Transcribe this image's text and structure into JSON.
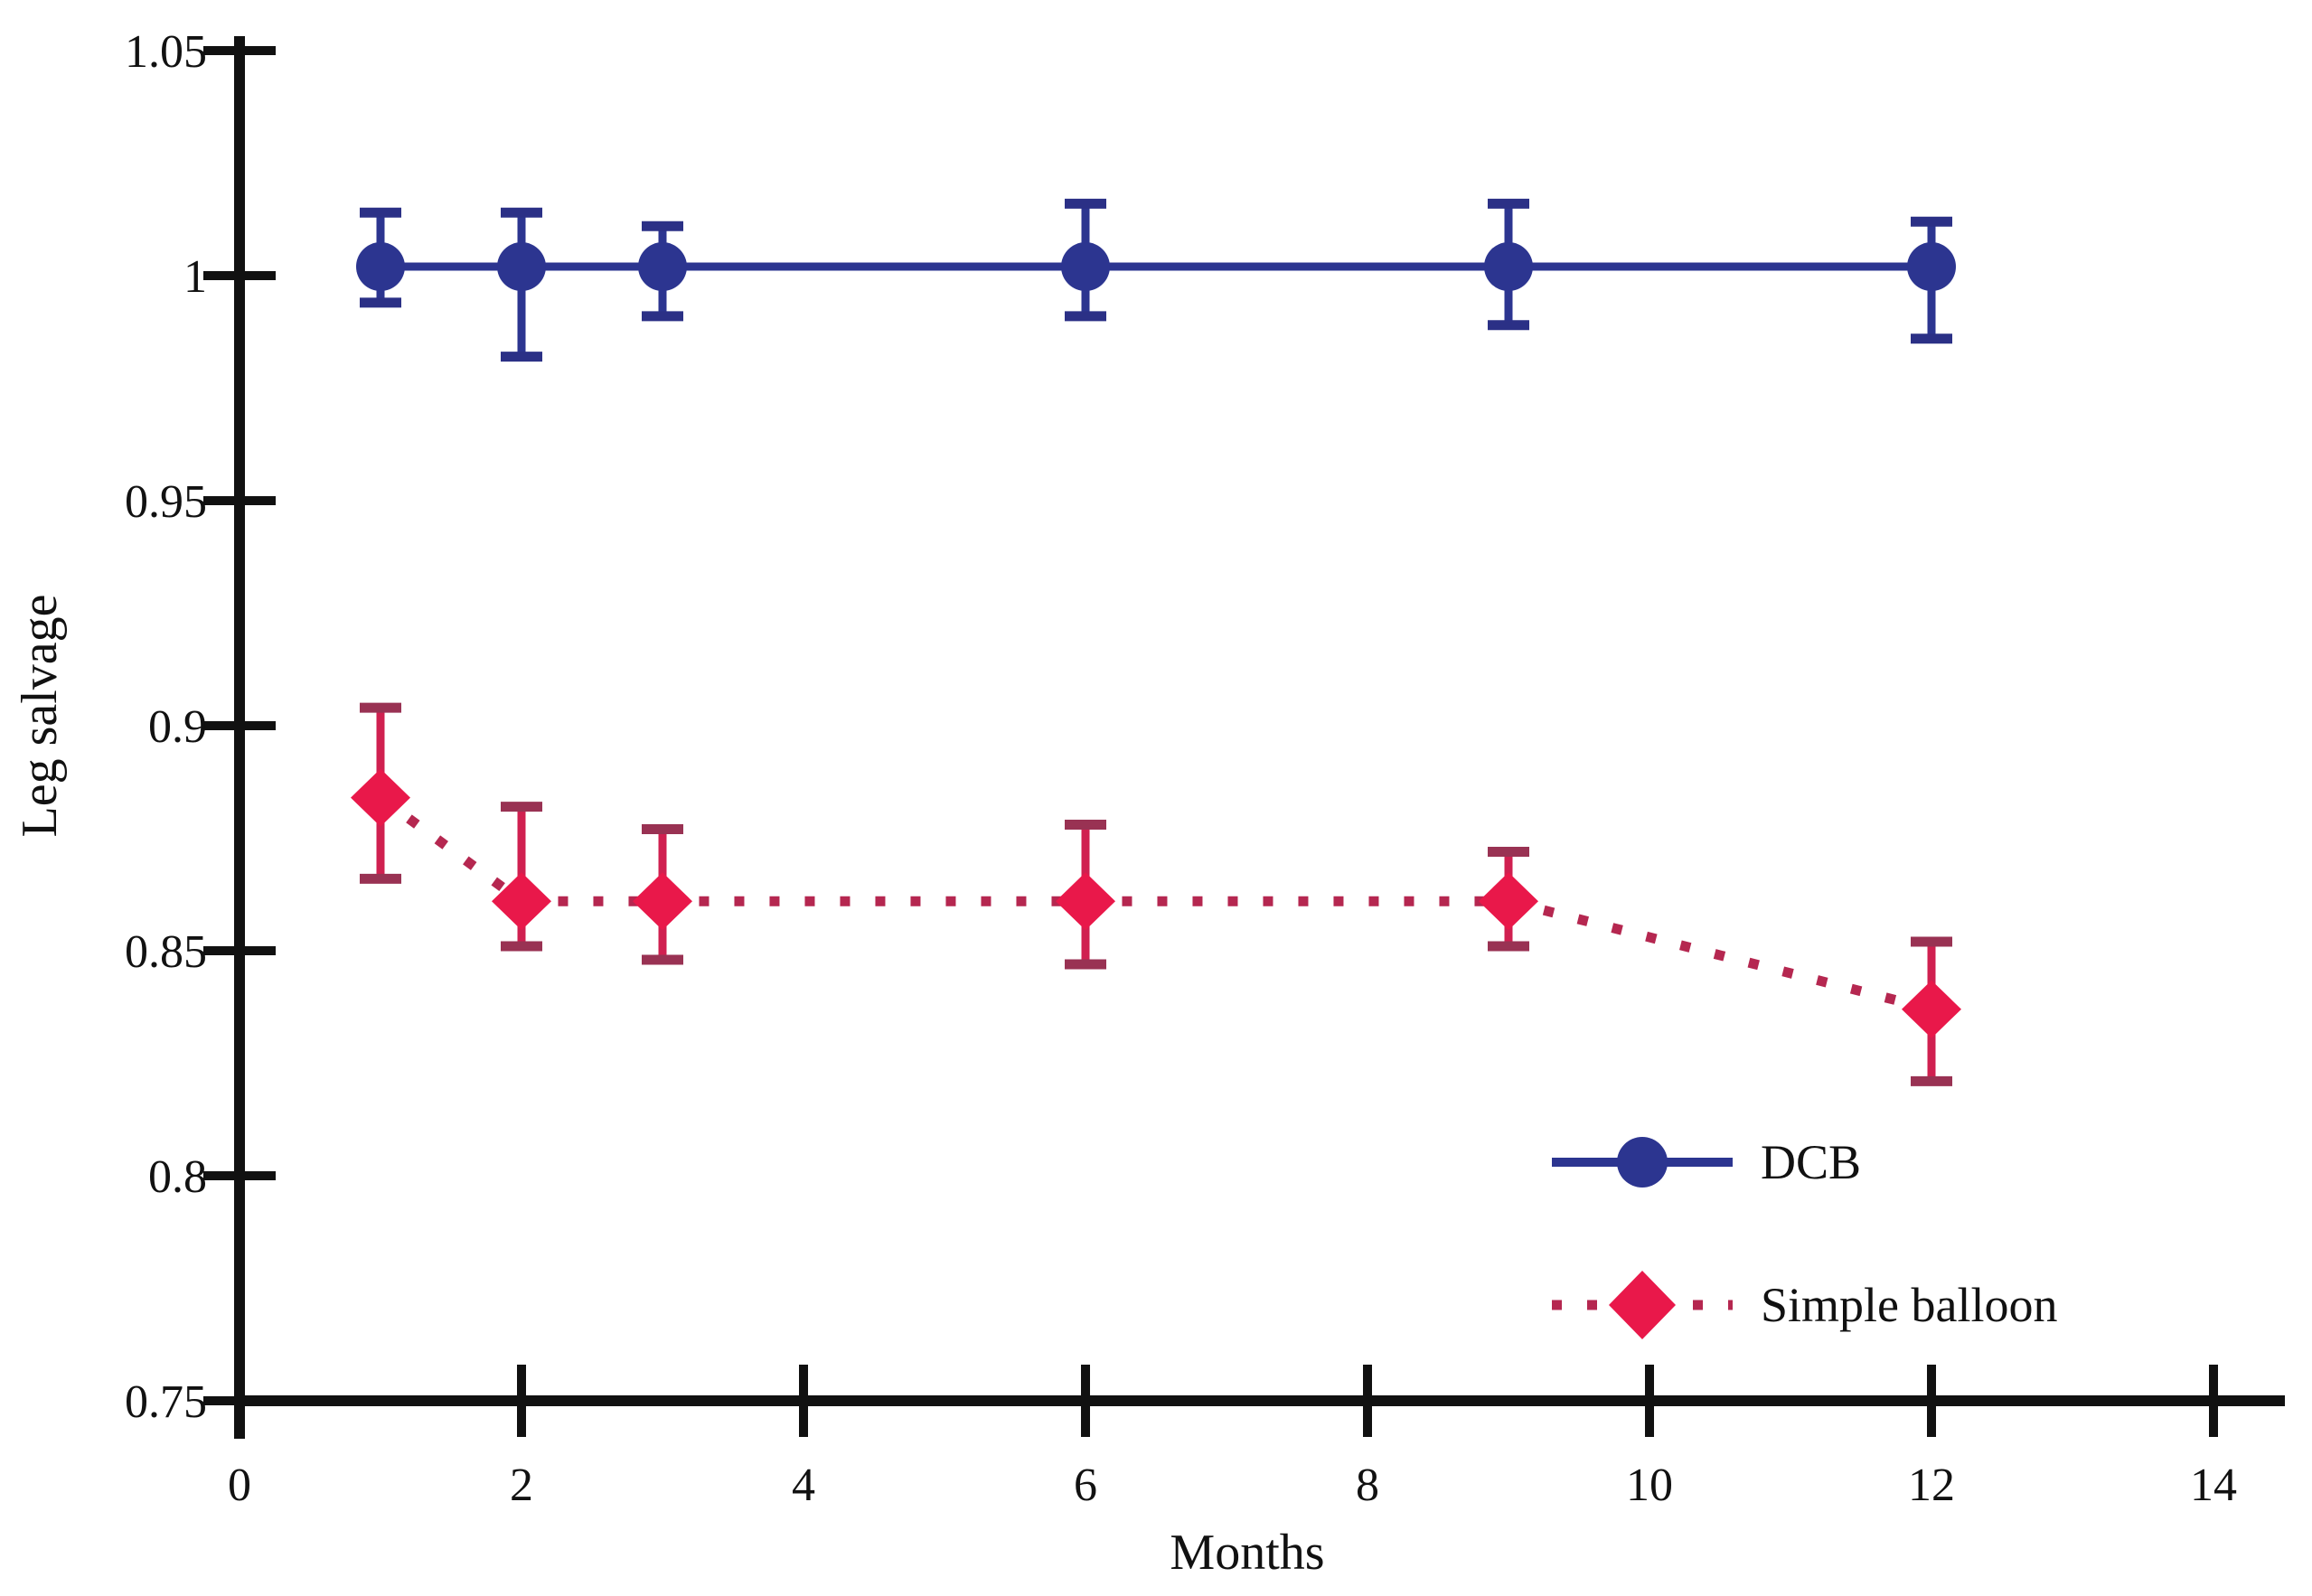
{
  "chart_data": {
    "type": "line",
    "title": "",
    "xlabel": "Months",
    "ylabel": "Leg salvage",
    "xlim": [
      0,
      14.7
    ],
    "ylim": [
      0.75,
      1.05
    ],
    "x_ticks": [
      0,
      2,
      4,
      6,
      8,
      10,
      12,
      14
    ],
    "x_tick_labels": [
      "0",
      "2",
      "4",
      "6",
      "8",
      "10",
      "12",
      "14"
    ],
    "y_ticks": [
      0.75,
      0.8,
      0.85,
      0.9,
      0.95,
      1.0,
      1.05
    ],
    "y_tick_labels": [
      "0.75",
      "0.8",
      "0.85",
      "0.9",
      "0.95",
      "1",
      "1.05"
    ],
    "grid": false,
    "legend_position": "lower right",
    "axis_color": "#111111",
    "series": [
      {
        "name": "DCB",
        "marker": "circle",
        "line_style": "solid",
        "marker_color": "#2c3590",
        "line_color": "#2c3590",
        "error_color": "#2c3590",
        "cap_color": "#2b3086",
        "x": [
          1,
          2,
          3,
          6,
          9,
          12
        ],
        "y": [
          1.002,
          1.002,
          1.002,
          1.002,
          1.002,
          1.002
        ],
        "err_lo": [
          0.994,
          0.982,
          0.991,
          0.991,
          0.989,
          0.986
        ],
        "err_hi": [
          1.014,
          1.014,
          1.011,
          1.016,
          1.016,
          1.012
        ]
      },
      {
        "name": "Simple balloon",
        "marker": "diamond",
        "line_style": "dotted",
        "marker_color": "#e9184a",
        "line_color": "#b52750",
        "error_color": "#d02050",
        "cap_color": "#993253",
        "x": [
          1,
          2,
          3,
          6,
          9,
          12
        ],
        "y": [
          0.884,
          0.861,
          0.861,
          0.861,
          0.861,
          0.837
        ],
        "err_lo": [
          0.866,
          0.851,
          0.848,
          0.847,
          0.851,
          0.821
        ],
        "err_hi": [
          0.904,
          0.882,
          0.877,
          0.878,
          0.872,
          0.852
        ]
      }
    ]
  },
  "legend": {
    "items": [
      {
        "label": "DCB"
      },
      {
        "label": "Simple balloon"
      }
    ]
  }
}
